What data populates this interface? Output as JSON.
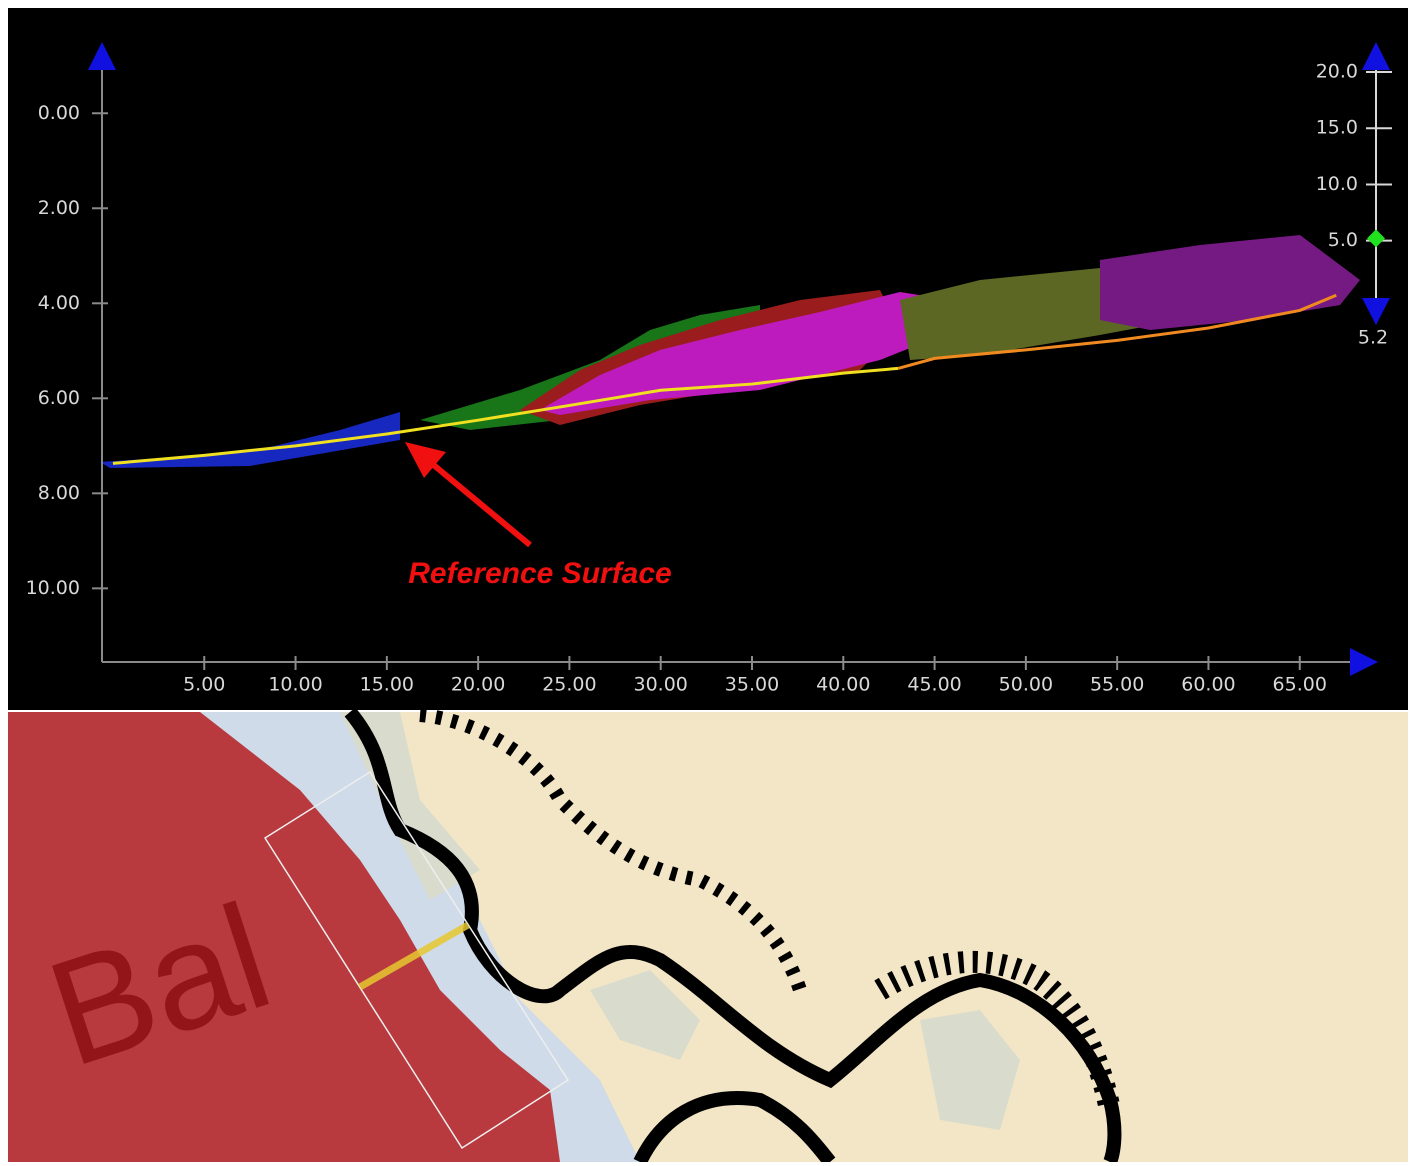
{
  "chart_data": {
    "type": "line",
    "annotation": "Reference Surface",
    "x": [
      0,
      5,
      10,
      15,
      20,
      25,
      30,
      35,
      40,
      43,
      45,
      50,
      55,
      60,
      65,
      67
    ],
    "series": [
      {
        "color": "#f0e020",
        "values": [
          7.37,
          7.2,
          7.0,
          6.75,
          6.46,
          6.15,
          5.83,
          5.7,
          5.47,
          5.37,
          null,
          null,
          null,
          null,
          null,
          null
        ]
      },
      {
        "color": "#f08a20",
        "values": [
          null,
          null,
          null,
          null,
          null,
          null,
          null,
          null,
          null,
          5.37,
          5.16,
          4.98,
          4.78,
          4.52,
          4.15,
          3.83
        ]
      }
    ],
    "xlim": [
      -0.6,
      68.3
    ],
    "xticks": [
      {
        "value": 5,
        "label": "5.00"
      },
      {
        "value": 10,
        "label": "10.00"
      },
      {
        "value": 15,
        "label": "15.00"
      },
      {
        "value": 20,
        "label": "20.00"
      },
      {
        "value": 25,
        "label": "25.00"
      },
      {
        "value": 30,
        "label": "30.00"
      },
      {
        "value": 35,
        "label": "35.00"
      },
      {
        "value": 40,
        "label": "40.00"
      },
      {
        "value": 45,
        "label": "45.00"
      },
      {
        "value": 50,
        "label": "50.00"
      },
      {
        "value": 55,
        "label": "55.00"
      },
      {
        "value": 60,
        "label": "60.00"
      },
      {
        "value": 65,
        "label": "65.00"
      }
    ],
    "ylim": [
      -1.1,
      11.55
    ],
    "y_inverted": true,
    "yticks": [
      {
        "value": 0,
        "label": "0.00"
      },
      {
        "value": 2,
        "label": "2.00"
      },
      {
        "value": 4,
        "label": "4.00"
      },
      {
        "value": 6,
        "label": "6.00"
      },
      {
        "value": 8,
        "label": "8.00"
      },
      {
        "value": 10,
        "label": "10.00"
      }
    ],
    "slider": {
      "lim": [
        -0.9,
        20
      ],
      "ticks": [
        {
          "value": 20,
          "label": "20.0"
        },
        {
          "value": 15,
          "label": "15.0"
        },
        {
          "value": 10,
          "label": "10.0"
        },
        {
          "value": 5,
          "label": "5.0"
        }
      ],
      "value": 5.2
    }
  },
  "map": {
    "label": "Bal"
  }
}
